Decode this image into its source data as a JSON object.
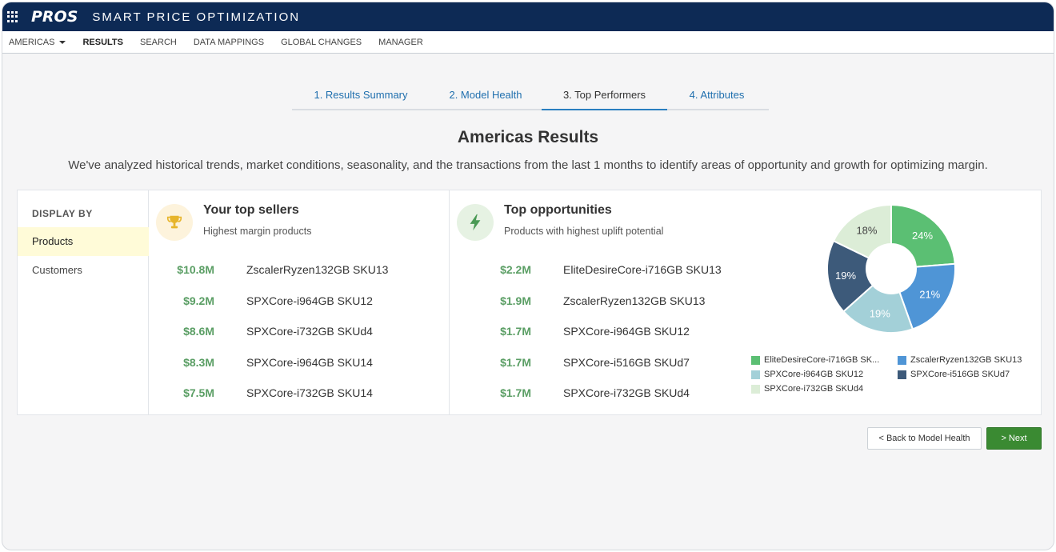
{
  "header": {
    "logo": "PROS",
    "app_title": "SMART PRICE OPTIMIZATION"
  },
  "nav": {
    "items": [
      {
        "label": "AMERICAS",
        "dropdown": true
      },
      {
        "label": "RESULTS",
        "active": true
      },
      {
        "label": "SEARCH"
      },
      {
        "label": "DATA MAPPINGS"
      },
      {
        "label": "GLOBAL CHANGES"
      },
      {
        "label": "MANAGER"
      }
    ]
  },
  "tabs": [
    {
      "label": "1. Results Summary"
    },
    {
      "label": "2. Model Health"
    },
    {
      "label": "3. Top Performers",
      "active": true
    },
    {
      "label": "4. Attributes"
    }
  ],
  "page": {
    "title": "Americas Results",
    "description": "We've analyzed historical trends, market conditions, seasonality, and the transactions from the last 1 months to identify areas of opportunity and growth for optimizing margin."
  },
  "display_by": {
    "label": "DISPLAY BY",
    "options": [
      "Products",
      "Customers"
    ],
    "selected": "Products"
  },
  "top_sellers": {
    "title": "Your top sellers",
    "subtitle": "Highest margin products",
    "icon": "trophy-icon",
    "rows": [
      {
        "amount": "$10.8M",
        "name": "ZscalerRyzen132GB SKU13"
      },
      {
        "amount": "$9.2M",
        "name": "SPXCore-i964GB SKU12"
      },
      {
        "amount": "$8.6M",
        "name": "SPXCore-i732GB SKUd4"
      },
      {
        "amount": "$8.3M",
        "name": "SPXCore-i964GB SKU14"
      },
      {
        "amount": "$7.5M",
        "name": "SPXCore-i732GB SKU14"
      }
    ]
  },
  "top_opportunities": {
    "title": "Top opportunities",
    "subtitle": "Products with highest uplift potential",
    "icon": "lightning-bolt-icon",
    "rows": [
      {
        "amount": "$2.2M",
        "name": "EliteDesireCore-i716GB SKU13"
      },
      {
        "amount": "$1.9M",
        "name": "ZscalerRyzen132GB SKU13"
      },
      {
        "amount": "$1.7M",
        "name": "SPXCore-i964GB SKU12"
      },
      {
        "amount": "$1.7M",
        "name": "SPXCore-i516GB SKUd7"
      },
      {
        "amount": "$1.7M",
        "name": "SPXCore-i732GB SKUd4"
      }
    ]
  },
  "chart_data": {
    "type": "pie",
    "donut": true,
    "slices": [
      {
        "label": "EliteDesireCore-i716GB SK...",
        "value": 24,
        "color": "#5bbf73",
        "text": "24%"
      },
      {
        "label": "ZscalerRyzen132GB SKU13",
        "value": 21,
        "color": "#4f95d6",
        "text": "21%"
      },
      {
        "label": "SPXCore-i964GB SKU12",
        "value": 19,
        "color": "#a3d0d8",
        "text": "19%"
      },
      {
        "label": "SPXCore-i516GB SKUd7",
        "value": 19,
        "color": "#3d5a7a",
        "text": "19%"
      },
      {
        "label": "SPXCore-i732GB SKUd4",
        "value": 18,
        "color": "#dcedd7",
        "text": "18%"
      }
    ]
  },
  "buttons": {
    "back": "< Back to Model Health",
    "next": "> Next"
  },
  "colors": {
    "header_bg": "#0d2a55",
    "accent": "#2a7fc0",
    "amount_green": "#5a9e64",
    "next_button": "#3a8a32"
  }
}
